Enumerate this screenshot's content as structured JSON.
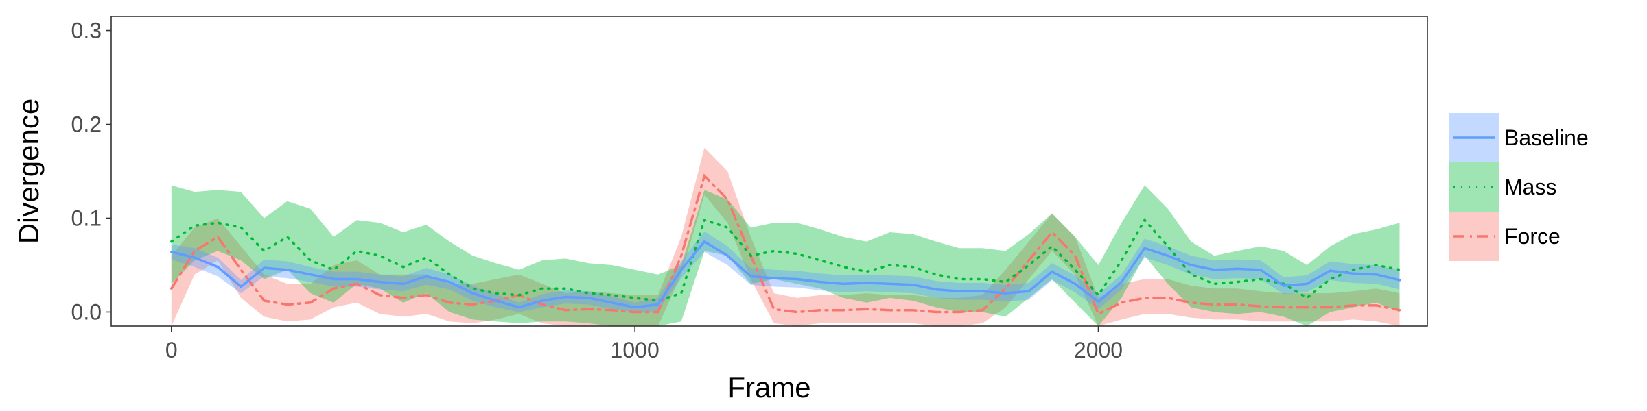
{
  "chart_data": {
    "type": "line",
    "title": "",
    "xlabel": "Frame",
    "ylabel": "Divergence",
    "xlim": [
      -130,
      2710
    ],
    "ylim": [
      -0.015,
      0.315
    ],
    "x_ticks": [
      0,
      1000,
      2000
    ],
    "x_tick_labels": [
      "0",
      "1000",
      "2000"
    ],
    "y_ticks": [
      0.0,
      0.1,
      0.2,
      0.3
    ],
    "y_tick_labels": [
      "0.0",
      "0.1",
      "0.2",
      "0.3"
    ],
    "grid": false,
    "legend_position": "right",
    "x": [
      0,
      50,
      100,
      150,
      200,
      250,
      300,
      350,
      400,
      450,
      500,
      550,
      600,
      650,
      700,
      750,
      800,
      850,
      900,
      950,
      1000,
      1050,
      1100,
      1150,
      1200,
      1250,
      1300,
      1350,
      1400,
      1450,
      1500,
      1550,
      1600,
      1650,
      1700,
      1750,
      1800,
      1850,
      1900,
      1950,
      2000,
      2050,
      2100,
      2150,
      2200,
      2250,
      2300,
      2350,
      2400,
      2450,
      2500,
      2550,
      2600,
      2650
    ],
    "series": [
      {
        "name": "Baseline",
        "color": "#619CFF",
        "line_style": "solid",
        "values": [
          0.064,
          0.058,
          0.048,
          0.027,
          0.047,
          0.045,
          0.04,
          0.035,
          0.035,
          0.032,
          0.03,
          0.038,
          0.032,
          0.02,
          0.012,
          0.005,
          0.012,
          0.016,
          0.015,
          0.01,
          0.005,
          0.008,
          0.045,
          0.075,
          0.06,
          0.038,
          0.036,
          0.035,
          0.032,
          0.03,
          0.031,
          0.03,
          0.029,
          0.024,
          0.022,
          0.022,
          0.02,
          0.022,
          0.043,
          0.03,
          0.011,
          0.032,
          0.068,
          0.06,
          0.05,
          0.045,
          0.046,
          0.045,
          0.028,
          0.03,
          0.044,
          0.041,
          0.04,
          0.034
        ],
        "lower": [
          0.056,
          0.048,
          0.038,
          0.02,
          0.038,
          0.036,
          0.032,
          0.027,
          0.027,
          0.024,
          0.022,
          0.029,
          0.024,
          0.012,
          0.005,
          0.0,
          0.005,
          0.009,
          0.008,
          0.003,
          0.0,
          0.001,
          0.036,
          0.064,
          0.05,
          0.029,
          0.027,
          0.026,
          0.023,
          0.021,
          0.022,
          0.021,
          0.02,
          0.015,
          0.013,
          0.013,
          0.011,
          0.013,
          0.034,
          0.021,
          0.003,
          0.024,
          0.058,
          0.05,
          0.04,
          0.035,
          0.036,
          0.035,
          0.019,
          0.021,
          0.034,
          0.031,
          0.03,
          0.024
        ],
        "upper": [
          0.072,
          0.068,
          0.058,
          0.034,
          0.056,
          0.054,
          0.048,
          0.043,
          0.043,
          0.04,
          0.038,
          0.047,
          0.04,
          0.028,
          0.019,
          0.01,
          0.019,
          0.023,
          0.022,
          0.017,
          0.01,
          0.015,
          0.054,
          0.086,
          0.07,
          0.047,
          0.045,
          0.044,
          0.041,
          0.039,
          0.04,
          0.039,
          0.038,
          0.033,
          0.031,
          0.031,
          0.029,
          0.031,
          0.052,
          0.039,
          0.019,
          0.04,
          0.078,
          0.07,
          0.06,
          0.055,
          0.056,
          0.055,
          0.037,
          0.039,
          0.054,
          0.051,
          0.05,
          0.044
        ]
      },
      {
        "name": "Mass",
        "color": "#00BA38",
        "line_style": "dotted",
        "values": [
          0.075,
          0.092,
          0.095,
          0.09,
          0.065,
          0.08,
          0.055,
          0.045,
          0.065,
          0.06,
          0.048,
          0.058,
          0.04,
          0.025,
          0.02,
          0.018,
          0.025,
          0.025,
          0.02,
          0.018,
          0.015,
          0.012,
          0.02,
          0.098,
          0.09,
          0.06,
          0.065,
          0.062,
          0.055,
          0.048,
          0.043,
          0.05,
          0.048,
          0.04,
          0.035,
          0.035,
          0.032,
          0.05,
          0.07,
          0.045,
          0.018,
          0.055,
          0.098,
          0.07,
          0.04,
          0.03,
          0.032,
          0.035,
          0.03,
          0.015,
          0.035,
          0.045,
          0.05,
          0.045
        ],
        "lower": [
          0.03,
          0.055,
          0.065,
          0.055,
          0.035,
          0.045,
          0.02,
          0.01,
          0.03,
          0.025,
          0.01,
          0.02,
          0.0,
          -0.008,
          -0.01,
          -0.012,
          -0.01,
          -0.01,
          -0.012,
          -0.015,
          -0.015,
          -0.015,
          -0.01,
          0.065,
          0.06,
          0.03,
          0.035,
          0.03,
          0.025,
          0.015,
          0.01,
          0.015,
          0.012,
          0.005,
          0.0,
          0.0,
          -0.005,
          0.015,
          0.035,
          0.01,
          -0.015,
          0.015,
          0.06,
          0.03,
          0.005,
          0.0,
          -0.002,
          0.0,
          -0.005,
          -0.015,
          0.0,
          0.005,
          0.01,
          0.0
        ],
        "upper": [
          0.135,
          0.128,
          0.13,
          0.128,
          0.1,
          0.118,
          0.11,
          0.08,
          0.098,
          0.095,
          0.085,
          0.093,
          0.075,
          0.06,
          0.052,
          0.045,
          0.055,
          0.057,
          0.052,
          0.05,
          0.045,
          0.04,
          0.05,
          0.13,
          0.12,
          0.09,
          0.095,
          0.095,
          0.088,
          0.08,
          0.075,
          0.085,
          0.083,
          0.075,
          0.068,
          0.068,
          0.065,
          0.083,
          0.105,
          0.08,
          0.05,
          0.095,
          0.135,
          0.11,
          0.075,
          0.06,
          0.065,
          0.07,
          0.065,
          0.05,
          0.07,
          0.083,
          0.088,
          0.095
        ]
      },
      {
        "name": "Force",
        "color": "#F8766D",
        "line_style": "dashdot",
        "values": [
          0.025,
          0.065,
          0.08,
          0.045,
          0.012,
          0.008,
          0.01,
          0.025,
          0.03,
          0.018,
          0.015,
          0.018,
          0.01,
          0.008,
          0.012,
          0.018,
          0.008,
          0.002,
          0.003,
          0.002,
          0.0,
          0.0,
          0.06,
          0.145,
          0.12,
          0.06,
          0.003,
          0.0,
          0.002,
          0.002,
          0.003,
          0.002,
          0.002,
          0.0,
          0.0,
          0.002,
          0.025,
          0.055,
          0.085,
          0.06,
          -0.002,
          0.01,
          0.015,
          0.015,
          0.01,
          0.008,
          0.008,
          0.006,
          0.005,
          0.005,
          0.005,
          0.007,
          0.007,
          0.002
        ],
        "lower": [
          -0.015,
          0.04,
          0.055,
          0.015,
          -0.005,
          -0.01,
          -0.008,
          0.005,
          0.01,
          -0.002,
          -0.005,
          -0.002,
          -0.01,
          -0.012,
          -0.008,
          -0.002,
          -0.012,
          -0.018,
          -0.015,
          -0.015,
          -0.018,
          -0.018,
          0.04,
          0.125,
          0.095,
          0.035,
          -0.012,
          -0.015,
          -0.012,
          -0.012,
          -0.012,
          -0.012,
          -0.012,
          -0.015,
          -0.015,
          -0.012,
          0.005,
          0.035,
          0.065,
          0.04,
          -0.02,
          -0.008,
          -0.002,
          -0.002,
          -0.006,
          -0.008,
          -0.008,
          -0.01,
          -0.01,
          -0.01,
          -0.01,
          -0.008,
          -0.01,
          -0.02
        ],
        "upper": [
          0.06,
          0.09,
          0.1,
          0.07,
          0.04,
          0.03,
          0.03,
          0.05,
          0.055,
          0.04,
          0.04,
          0.04,
          0.03,
          0.03,
          0.035,
          0.04,
          0.03,
          0.02,
          0.022,
          0.02,
          0.018,
          0.018,
          0.08,
          0.175,
          0.15,
          0.08,
          0.02,
          0.015,
          0.018,
          0.018,
          0.02,
          0.018,
          0.018,
          0.015,
          0.015,
          0.018,
          0.045,
          0.075,
          0.105,
          0.08,
          0.015,
          0.03,
          0.035,
          0.035,
          0.028,
          0.025,
          0.025,
          0.022,
          0.02,
          0.02,
          0.02,
          0.022,
          0.025,
          0.02
        ]
      }
    ]
  }
}
